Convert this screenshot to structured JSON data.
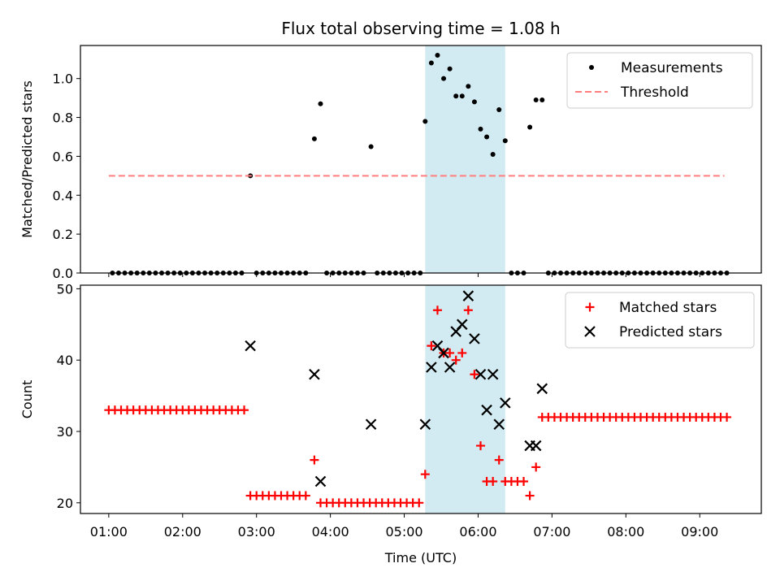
{
  "title": "Flux total observing time = 1.08 h",
  "chart_data": [
    {
      "type": "scatter",
      "ylabel": "Matched/Predicted stars",
      "ylim": [
        0,
        1.17
      ],
      "yticks": [
        "0.0",
        "0.2",
        "0.4",
        "0.6",
        "0.8",
        "1.0"
      ],
      "xlim": [
        "00:37",
        "09:50"
      ],
      "shaded_interval": [
        "05:17",
        "06:22"
      ],
      "shade_color": "#add8e6",
      "legend_position": "top-right",
      "legend": [
        "Measurements",
        "Threshold"
      ],
      "series": [
        {
          "name": "Measurements",
          "color": "#000000",
          "marker": "dot",
          "points": [
            [
              "01:03",
              0
            ],
            [
              "01:08",
              0
            ],
            [
              "01:13",
              0
            ],
            [
              "01:18",
              0
            ],
            [
              "01:23",
              0
            ],
            [
              "01:28",
              0
            ],
            [
              "01:33",
              0
            ],
            [
              "01:38",
              0
            ],
            [
              "01:43",
              0
            ],
            [
              "01:48",
              0
            ],
            [
              "01:53",
              0
            ],
            [
              "01:58",
              0
            ],
            [
              "02:03",
              0
            ],
            [
              "02:08",
              0
            ],
            [
              "02:13",
              0
            ],
            [
              "02:18",
              0
            ],
            [
              "02:23",
              0
            ],
            [
              "02:28",
              0
            ],
            [
              "02:33",
              0
            ],
            [
              "02:38",
              0
            ],
            [
              "02:43",
              0
            ],
            [
              "02:48",
              0
            ],
            [
              "02:55",
              0.5
            ],
            [
              "03:00",
              0
            ],
            [
              "03:05",
              0
            ],
            [
              "03:10",
              0
            ],
            [
              "03:15",
              0
            ],
            [
              "03:20",
              0
            ],
            [
              "03:25",
              0
            ],
            [
              "03:30",
              0
            ],
            [
              "03:35",
              0
            ],
            [
              "03:40",
              0
            ],
            [
              "03:47",
              0.69
            ],
            [
              "03:52",
              0.87
            ],
            [
              "03:57",
              0
            ],
            [
              "04:02",
              0
            ],
            [
              "04:07",
              0
            ],
            [
              "04:12",
              0
            ],
            [
              "04:17",
              0
            ],
            [
              "04:22",
              0
            ],
            [
              "04:27",
              0
            ],
            [
              "04:33",
              0.65
            ],
            [
              "04:38",
              0
            ],
            [
              "04:43",
              0
            ],
            [
              "04:48",
              0
            ],
            [
              "04:53",
              0
            ],
            [
              "04:58",
              0
            ],
            [
              "05:03",
              0
            ],
            [
              "05:08",
              0
            ],
            [
              "05:13",
              0
            ],
            [
              "05:17",
              0.78
            ],
            [
              "05:22",
              1.08
            ],
            [
              "05:27",
              1.12
            ],
            [
              "05:32",
              1.0
            ],
            [
              "05:37",
              1.05
            ],
            [
              "05:42",
              0.91
            ],
            [
              "05:47",
              0.91
            ],
            [
              "05:52",
              0.96
            ],
            [
              "05:57",
              0.88
            ],
            [
              "06:02",
              0.74
            ],
            [
              "06:07",
              0.7
            ],
            [
              "06:12",
              0.61
            ],
            [
              "06:17",
              0.84
            ],
            [
              "06:22",
              0.68
            ],
            [
              "06:27",
              0
            ],
            [
              "06:32",
              0
            ],
            [
              "06:37",
              0
            ],
            [
              "06:42",
              0.75
            ],
            [
              "06:47",
              0.89
            ],
            [
              "06:52",
              0.89
            ],
            [
              "06:57",
              0
            ],
            [
              "07:02",
              0
            ],
            [
              "07:07",
              0
            ],
            [
              "07:12",
              0
            ],
            [
              "07:17",
              0
            ],
            [
              "07:22",
              0
            ],
            [
              "07:27",
              0
            ],
            [
              "07:32",
              0
            ],
            [
              "07:37",
              0
            ],
            [
              "07:42",
              0
            ],
            [
              "07:47",
              0
            ],
            [
              "07:52",
              0
            ],
            [
              "07:57",
              0
            ],
            [
              "08:02",
              0
            ],
            [
              "08:07",
              0
            ],
            [
              "08:12",
              0
            ],
            [
              "08:17",
              0
            ],
            [
              "08:22",
              0
            ],
            [
              "08:27",
              0
            ],
            [
              "08:32",
              0
            ],
            [
              "08:37",
              0
            ],
            [
              "08:42",
              0
            ],
            [
              "08:47",
              0
            ],
            [
              "08:52",
              0
            ],
            [
              "08:57",
              0
            ],
            [
              "09:02",
              0
            ],
            [
              "09:07",
              0
            ],
            [
              "09:12",
              0
            ],
            [
              "09:17",
              0
            ],
            [
              "09:22",
              0
            ]
          ]
        },
        {
          "name": "Threshold",
          "color": "#ff7f7f",
          "style": "dashed",
          "points": [
            [
              "01:00",
              0.5
            ],
            [
              "09:20",
              0.5
            ]
          ]
        }
      ]
    },
    {
      "type": "scatter",
      "xlabel": "Time (UTC)",
      "ylabel": "Count",
      "ylim": [
        18.5,
        50.5
      ],
      "yticks": [
        "20",
        "30",
        "40",
        "50"
      ],
      "xlim": [
        "00:37",
        "09:50"
      ],
      "xticks": [
        "01:00",
        "02:00",
        "03:00",
        "04:00",
        "05:00",
        "06:00",
        "07:00",
        "08:00",
        "09:00"
      ],
      "shaded_interval": [
        "05:17",
        "06:22"
      ],
      "legend_position": "top-right",
      "legend": [
        "Matched stars",
        "Predicted stars"
      ],
      "series": [
        {
          "name": "Matched stars",
          "color": "#ff0000",
          "marker": "plus",
          "points": [
            [
              "01:00",
              33
            ],
            [
              "01:05",
              33
            ],
            [
              "01:10",
              33
            ],
            [
              "01:15",
              33
            ],
            [
              "01:20",
              33
            ],
            [
              "01:25",
              33
            ],
            [
              "01:30",
              33
            ],
            [
              "01:35",
              33
            ],
            [
              "01:40",
              33
            ],
            [
              "01:45",
              33
            ],
            [
              "01:50",
              33
            ],
            [
              "01:55",
              33
            ],
            [
              "02:00",
              33
            ],
            [
              "02:05",
              33
            ],
            [
              "02:10",
              33
            ],
            [
              "02:15",
              33
            ],
            [
              "02:20",
              33
            ],
            [
              "02:25",
              33
            ],
            [
              "02:30",
              33
            ],
            [
              "02:35",
              33
            ],
            [
              "02:40",
              33
            ],
            [
              "02:45",
              33
            ],
            [
              "02:50",
              33
            ],
            [
              "02:55",
              21
            ],
            [
              "03:00",
              21
            ],
            [
              "03:05",
              21
            ],
            [
              "03:10",
              21
            ],
            [
              "03:15",
              21
            ],
            [
              "03:20",
              21
            ],
            [
              "03:25",
              21
            ],
            [
              "03:30",
              21
            ],
            [
              "03:35",
              21
            ],
            [
              "03:40",
              21
            ],
            [
              "03:47",
              26
            ],
            [
              "03:52",
              20
            ],
            [
              "03:57",
              20
            ],
            [
              "04:02",
              20
            ],
            [
              "04:07",
              20
            ],
            [
              "04:12",
              20
            ],
            [
              "04:17",
              20
            ],
            [
              "04:22",
              20
            ],
            [
              "04:27",
              20
            ],
            [
              "04:32",
              20
            ],
            [
              "04:37",
              20
            ],
            [
              "04:42",
              20
            ],
            [
              "04:47",
              20
            ],
            [
              "04:52",
              20
            ],
            [
              "04:57",
              20
            ],
            [
              "05:02",
              20
            ],
            [
              "05:07",
              20
            ],
            [
              "05:12",
              20
            ],
            [
              "05:17",
              24
            ],
            [
              "05:22",
              42
            ],
            [
              "05:27",
              47
            ],
            [
              "05:32",
              41
            ],
            [
              "05:37",
              41
            ],
            [
              "05:42",
              40
            ],
            [
              "05:47",
              41
            ],
            [
              "05:52",
              47
            ],
            [
              "05:57",
              38
            ],
            [
              "06:02",
              28
            ],
            [
              "06:07",
              23
            ],
            [
              "06:12",
              23
            ],
            [
              "06:17",
              26
            ],
            [
              "06:22",
              23
            ],
            [
              "06:27",
              23
            ],
            [
              "06:32",
              23
            ],
            [
              "06:37",
              23
            ],
            [
              "06:42",
              21
            ],
            [
              "06:47",
              25
            ],
            [
              "06:52",
              32
            ],
            [
              "06:57",
              32
            ],
            [
              "07:02",
              32
            ],
            [
              "07:07",
              32
            ],
            [
              "07:12",
              32
            ],
            [
              "07:17",
              32
            ],
            [
              "07:22",
              32
            ],
            [
              "07:27",
              32
            ],
            [
              "07:32",
              32
            ],
            [
              "07:37",
              32
            ],
            [
              "07:42",
              32
            ],
            [
              "07:47",
              32
            ],
            [
              "07:52",
              32
            ],
            [
              "07:57",
              32
            ],
            [
              "08:02",
              32
            ],
            [
              "08:07",
              32
            ],
            [
              "08:12",
              32
            ],
            [
              "08:17",
              32
            ],
            [
              "08:22",
              32
            ],
            [
              "08:27",
              32
            ],
            [
              "08:32",
              32
            ],
            [
              "08:37",
              32
            ],
            [
              "08:42",
              32
            ],
            [
              "08:47",
              32
            ],
            [
              "08:52",
              32
            ],
            [
              "08:57",
              32
            ],
            [
              "09:02",
              32
            ],
            [
              "09:07",
              32
            ],
            [
              "09:12",
              32
            ],
            [
              "09:17",
              32
            ],
            [
              "09:22",
              32
            ]
          ]
        },
        {
          "name": "Predicted stars",
          "color": "#000000",
          "marker": "x",
          "points": [
            [
              "02:55",
              42
            ],
            [
              "03:47",
              38
            ],
            [
              "03:52",
              23
            ],
            [
              "04:33",
              31
            ],
            [
              "05:17",
              31
            ],
            [
              "05:22",
              39
            ],
            [
              "05:27",
              42
            ],
            [
              "05:32",
              41
            ],
            [
              "05:37",
              39
            ],
            [
              "05:42",
              44
            ],
            [
              "05:47",
              45
            ],
            [
              "05:52",
              49
            ],
            [
              "05:57",
              43
            ],
            [
              "06:02",
              38
            ],
            [
              "06:07",
              33
            ],
            [
              "06:12",
              38
            ],
            [
              "06:17",
              31
            ],
            [
              "06:22",
              34
            ],
            [
              "06:42",
              28
            ],
            [
              "06:47",
              28
            ],
            [
              "06:52",
              36
            ]
          ]
        }
      ]
    }
  ]
}
